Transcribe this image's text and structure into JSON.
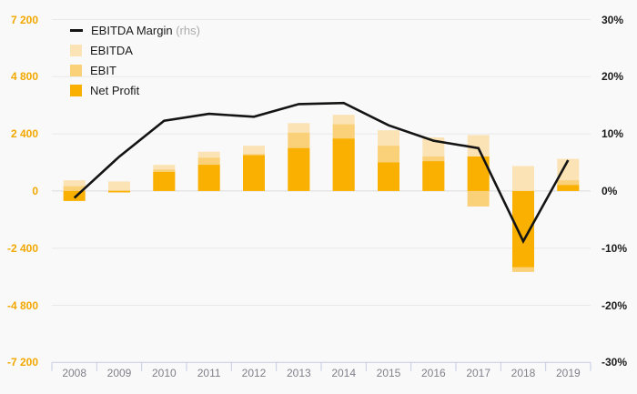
{
  "chart_data": {
    "type": "combo",
    "categories": [
      "2008",
      "2009",
      "2010",
      "2011",
      "2012",
      "2013",
      "2014",
      "2015",
      "2016",
      "2017",
      "2018",
      "2019"
    ],
    "series": [
      {
        "name": "EBITDA",
        "type": "bar",
        "axis": "left",
        "color_key": "ebitda",
        "values": [
          450,
          400,
          1100,
          1650,
          1900,
          2850,
          3200,
          2550,
          2250,
          2350,
          1050,
          1350
        ]
      },
      {
        "name": "EBIT",
        "type": "bar",
        "axis": "left",
        "color_key": "ebit",
        "values": [
          200,
          30,
          900,
          1400,
          1550,
          2450,
          2800,
          1900,
          1450,
          -650,
          -3400,
          450
        ]
      },
      {
        "name": "Net Profit",
        "type": "bar",
        "axis": "left",
        "color_key": "net_profit",
        "values": [
          -420,
          -60,
          800,
          1100,
          1500,
          1800,
          2200,
          1200,
          1250,
          1450,
          -3200,
          250
        ]
      },
      {
        "name": "EBITDA Margin",
        "type": "line",
        "axis": "right",
        "color_key": "line",
        "values": [
          -1.2,
          6,
          12.3,
          13.5,
          13,
          15.2,
          15.4,
          11.5,
          8.8,
          7.5,
          -8.8,
          5.4
        ]
      }
    ],
    "left_axis": {
      "tick_labels": [
        "7 200",
        "4 800",
        "2 400",
        "0",
        "-2 400",
        "-4 800",
        "-7 200"
      ],
      "tick_values": [
        7200,
        4800,
        2400,
        0,
        -2400,
        -4800,
        -7200
      ],
      "min": -7200,
      "max": 7200
    },
    "right_axis": {
      "tick_labels": [
        "30%",
        "20%",
        "10%",
        "0%",
        "-10%",
        "-20%",
        "-30%"
      ],
      "tick_values": [
        30,
        20,
        10,
        0,
        -10,
        -20,
        -30
      ],
      "min": -30,
      "max": 30
    },
    "legend": [
      {
        "label": "EBITDA Margin",
        "suffix": "(rhs)",
        "swatch": "line"
      },
      {
        "label": "EBITDA",
        "suffix": "",
        "swatch": "ebitda"
      },
      {
        "label": "EBIT",
        "suffix": "",
        "swatch": "ebit"
      },
      {
        "label": "Net Profit",
        "suffix": "",
        "swatch": "net_profit"
      }
    ],
    "title": "",
    "grid": true,
    "legend_position": "top-left"
  },
  "colors": {
    "ebitda": "#fbe3b6",
    "ebit": "#fad178",
    "net_profit": "#f9b000",
    "line": "#141414",
    "left_axis_text": "#f2a800",
    "right_axis_text": "#1a1a1a",
    "grid": "#e9e9e9",
    "zero_line": "#dcdcdc",
    "bottom_axis": "#c5cbe3",
    "background": "#f9f9f9"
  }
}
